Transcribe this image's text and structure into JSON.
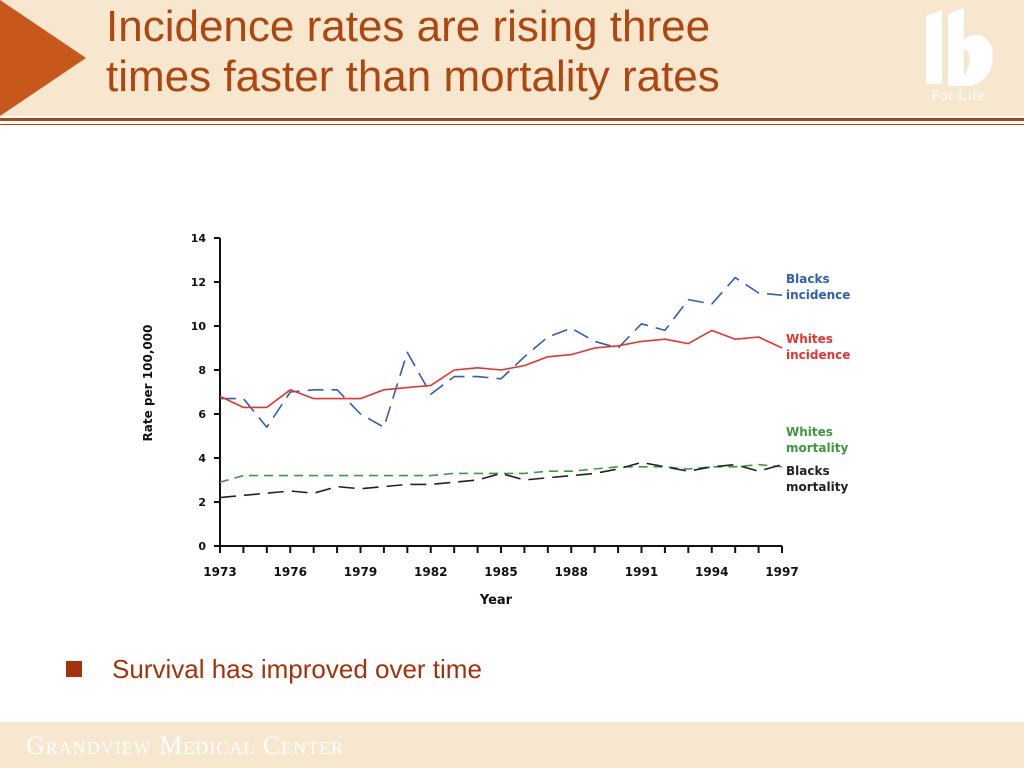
{
  "slide": {
    "title_line1": "Incidence rates are rising three",
    "title_line2": "times faster than mortality rates",
    "logo_text": "For Life",
    "bullet": "Survival has improved over time",
    "footer": "Grandview Medical Center",
    "colors": {
      "accent": "#c8571c",
      "title": "#b0460f",
      "band": "#f7e7cf",
      "bullet": "#a3330a"
    }
  },
  "chart_data": {
    "type": "line",
    "xlabel": "Year",
    "ylabel": "Rate per 100,000",
    "xlim": [
      1973,
      1997
    ],
    "ylim": [
      0,
      14
    ],
    "yticks": [
      0,
      2,
      4,
      6,
      8,
      10,
      12,
      14
    ],
    "xtick_labels": [
      "1973",
      "1976",
      "1979",
      "1982",
      "1985",
      "1988",
      "1991",
      "1994",
      "1997"
    ],
    "grid": false,
    "legend": "right, labels beside line ends",
    "x": [
      1973,
      1974,
      1975,
      1976,
      1977,
      1978,
      1979,
      1980,
      1981,
      1982,
      1983,
      1984,
      1985,
      1986,
      1987,
      1988,
      1989,
      1990,
      1991,
      1992,
      1993,
      1994,
      1995,
      1996,
      1997
    ],
    "series": [
      {
        "name": "Blacks incidence",
        "label_lines": [
          "Blacks",
          "incidence"
        ],
        "color": "#2f5fb3",
        "dash": "dashed-long",
        "values": [
          6.7,
          6.7,
          5.4,
          7.0,
          7.1,
          7.1,
          6.0,
          5.4,
          8.8,
          6.9,
          7.7,
          7.7,
          7.6,
          8.6,
          9.5,
          9.9,
          9.3,
          9.0,
          10.1,
          9.8,
          11.2,
          11.0,
          12.2,
          11.5,
          11.4
        ]
      },
      {
        "name": "Whites incidence",
        "label_lines": [
          "Whites",
          "incidence"
        ],
        "color": "#e8342c",
        "dash": "solid",
        "values": [
          6.8,
          6.3,
          6.3,
          7.1,
          6.7,
          6.7,
          6.7,
          7.1,
          7.2,
          7.3,
          8.0,
          8.1,
          8.0,
          8.2,
          8.6,
          8.7,
          9.0,
          9.1,
          9.3,
          9.4,
          9.2,
          9.8,
          9.4,
          9.5,
          9.0
        ]
      },
      {
        "name": "Whites mortality",
        "label_lines": [
          "Whites",
          "mortality"
        ],
        "color": "#3c9a3c",
        "dash": "dashed",
        "values": [
          2.9,
          3.2,
          3.2,
          3.2,
          3.2,
          3.2,
          3.2,
          3.2,
          3.2,
          3.2,
          3.3,
          3.3,
          3.3,
          3.3,
          3.4,
          3.4,
          3.5,
          3.6,
          3.6,
          3.6,
          3.5,
          3.6,
          3.6,
          3.7,
          3.6
        ]
      },
      {
        "name": "Blacks mortality",
        "label_lines": [
          "Blacks",
          "mortality"
        ],
        "color": "#222222",
        "dash": "dashed-long",
        "values": [
          2.2,
          2.3,
          2.4,
          2.5,
          2.4,
          2.7,
          2.6,
          2.7,
          2.8,
          2.8,
          2.9,
          3.0,
          3.3,
          3.0,
          3.1,
          3.2,
          3.3,
          3.5,
          3.8,
          3.6,
          3.4,
          3.6,
          3.7,
          3.4,
          3.7
        ]
      }
    ]
  }
}
